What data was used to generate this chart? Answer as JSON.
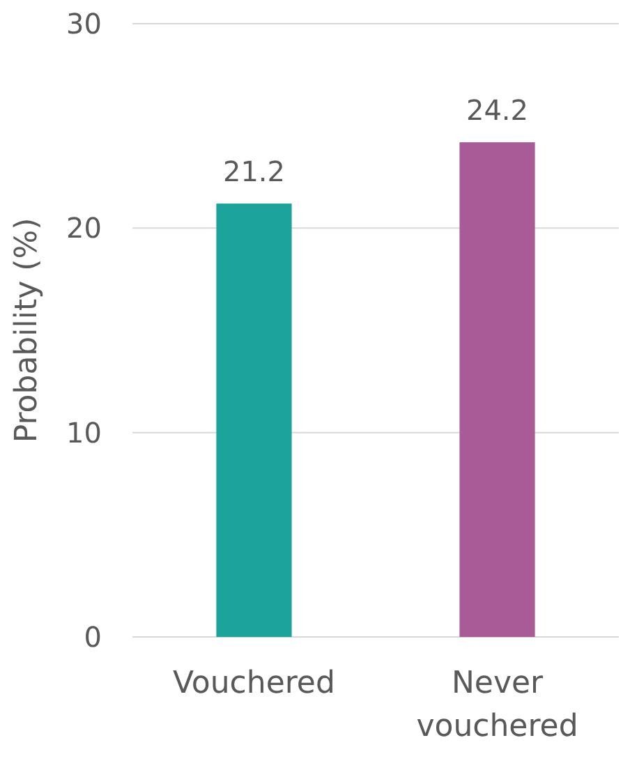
{
  "chart_data": {
    "type": "bar",
    "ylabel": "Probability (%)",
    "categories": [
      "Vouchered",
      "Never vouchered"
    ],
    "series": [
      {
        "colors": [
          "#1ba39c",
          "#a85b96"
        ],
        "values": [
          21.2,
          24.2
        ]
      }
    ],
    "ylim": [
      0,
      30
    ],
    "yticks": [
      0,
      10,
      20,
      30
    ],
    "grid": "y",
    "data_labels": true
  }
}
